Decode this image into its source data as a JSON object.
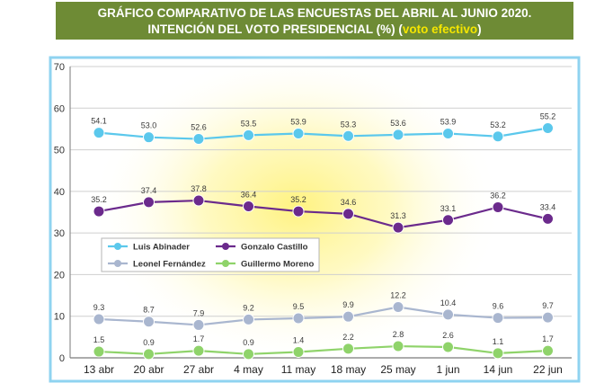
{
  "header": {
    "line1": "GRÁFICO COMPARATIVO DE LAS ENCUESTAS DEL ABRIL AL JUNIO 2020.",
    "line2_main": "INTENCIÓN DEL VOTO PRESIDENCIAL (%) (",
    "line2_accent": "voto efectivo",
    "line2_close": ")"
  },
  "colors": {
    "header_bg": "#6e8b35",
    "frame": "#8fd3f0",
    "abinader": "#5bc8ec",
    "castillo": "#6b2a8c",
    "fernandez": "#a9b6cf",
    "moreno": "#8fd36a"
  },
  "chart_data": {
    "type": "line",
    "title": "GRÁFICO COMPARATIVO DE LAS ENCUESTAS DEL ABRIL AL JUNIO 2020. INTENCIÓN DEL VOTO PRESIDENCIAL (%) (voto efectivo)",
    "xlabel": "",
    "ylabel": "",
    "ylim": [
      0,
      70
    ],
    "yticks": [
      "0",
      "10",
      "20",
      "30",
      "40",
      "50",
      "60",
      "70"
    ],
    "grid": true,
    "legend": "middle-left",
    "categories": [
      "13 abr",
      "20 abr",
      "27 abr",
      "4 may",
      "11 may",
      "18 may",
      "25 may",
      "1 jun",
      "14 jun",
      "22 jun"
    ],
    "series": [
      {
        "name": "Luis Abinader",
        "values": [
          54.1,
          53.0,
          52.6,
          53.5,
          53.9,
          53.3,
          53.6,
          53.9,
          53.2,
          55.2
        ],
        "labels": [
          "54.1",
          "53.0",
          "52.6",
          "53.5",
          "53.9",
          "53.3",
          "53.6",
          "53.9",
          "53.2",
          "55.2"
        ]
      },
      {
        "name": "Gonzalo Castillo",
        "values": [
          35.2,
          37.4,
          37.8,
          36.4,
          35.2,
          34.6,
          31.3,
          33.1,
          36.2,
          33.4
        ],
        "labels": [
          "35.2",
          "37.4",
          "37.8",
          "36.4",
          "35.2",
          "34.6",
          "31.3",
          "33.1",
          "36.2",
          "33.4"
        ]
      },
      {
        "name": "Leonel Fernández",
        "values": [
          9.3,
          8.7,
          7.9,
          9.2,
          9.5,
          9.9,
          12.2,
          10.4,
          9.6,
          9.7
        ],
        "labels": [
          "9.3",
          "8.7",
          "7.9",
          "9.2",
          "9.5",
          "9.9",
          "12.2",
          "10.4",
          "9.6",
          "9.7"
        ]
      },
      {
        "name": "Guillermo Moreno",
        "values": [
          1.5,
          0.9,
          1.7,
          0.9,
          1.4,
          2.2,
          2.8,
          2.6,
          1.1,
          1.7
        ],
        "labels": [
          "1.5",
          "0.9",
          "1.7",
          "0.9",
          "1.4",
          "2.2",
          "2.8",
          "2.6",
          "1.1",
          "1.7"
        ]
      }
    ]
  }
}
